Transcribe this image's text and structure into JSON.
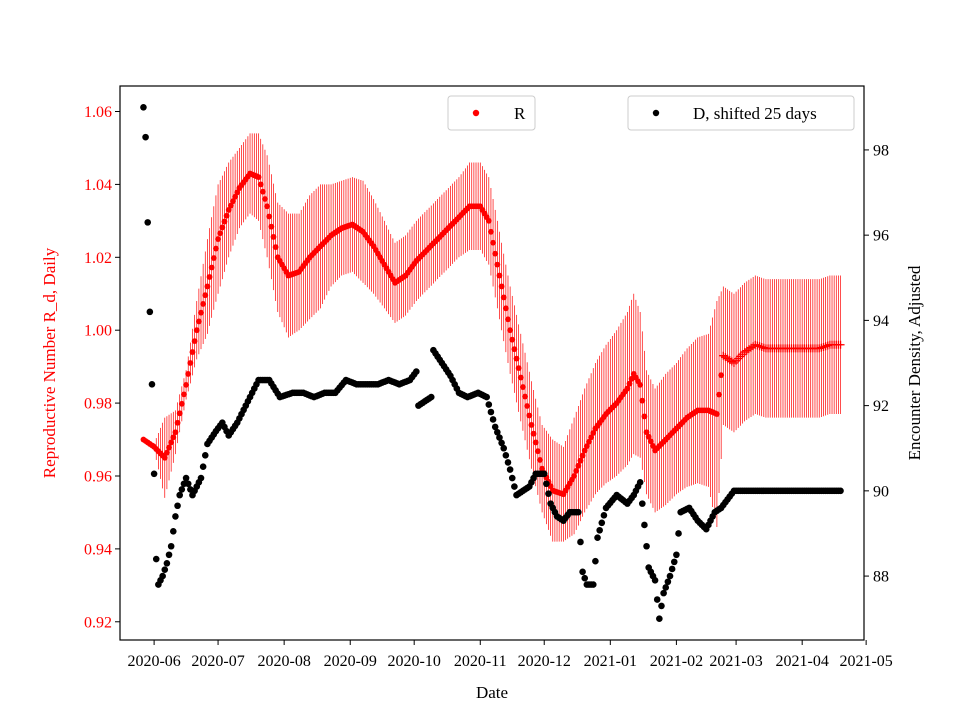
{
  "chart_data": {
    "type": "scatter",
    "xlabel": "Date",
    "ylabel_left": "Reproductive Number R_d, Daily",
    "ylabel_right": "Encounter Density, Adjusted",
    "colors": {
      "r": "#ff0000",
      "d": "#000000",
      "left_axis": "#ff0000",
      "frame": "#000000"
    },
    "x_range": [
      "2020-05-16",
      "2021-04-30"
    ],
    "x_ticks": [
      {
        "date": "2020-06-01",
        "label": "2020-06"
      },
      {
        "date": "2020-07-01",
        "label": "2020-07"
      },
      {
        "date": "2020-08-01",
        "label": "2020-08"
      },
      {
        "date": "2020-09-01",
        "label": "2020-09"
      },
      {
        "date": "2020-10-01",
        "label": "2020-10"
      },
      {
        "date": "2020-11-01",
        "label": "2020-11"
      },
      {
        "date": "2020-12-01",
        "label": "2020-12"
      },
      {
        "date": "2021-01-01",
        "label": "2021-01"
      },
      {
        "date": "2021-02-01",
        "label": "2021-02"
      },
      {
        "date": "2021-03-01",
        "label": "2021-03"
      },
      {
        "date": "2021-04-01",
        "label": "2021-04"
      },
      {
        "date": "2021-05-01",
        "label": "2021-05"
      }
    ],
    "y_left": {
      "range": [
        0.915,
        1.067
      ],
      "ticks": [
        "0.92",
        "0.94",
        "0.96",
        "0.98",
        "1.00",
        "1.02",
        "1.04",
        "1.06"
      ]
    },
    "y_right": {
      "range": [
        86.5,
        99.5
      ],
      "ticks": [
        "88",
        "90",
        "92",
        "94",
        "96",
        "98"
      ]
    },
    "legend": {
      "r_label": "R",
      "d_label": "D, shifted 25 days",
      "r_position": "top-center",
      "d_position": "top-right"
    },
    "series_r": {
      "name": "R",
      "marker": "o then +",
      "start": "2020-05-27",
      "end": "2021-04-19",
      "plus_from": "2021-02-23",
      "knots": [
        [
          "2020-05-27",
          0.97,
          0.97
        ],
        [
          "2020-06-01",
          0.968,
          0.967
        ],
        [
          "2020-06-06",
          0.965,
          0.954
        ],
        [
          "2020-06-11",
          0.972,
          0.966
        ],
        [
          "2020-06-16",
          0.985,
          0.981
        ],
        [
          "2020-06-21",
          1.0,
          0.992
        ],
        [
          "2020-06-26",
          1.012,
          0.999
        ],
        [
          "2020-07-01",
          1.025,
          1.01
        ],
        [
          "2020-07-06",
          1.033,
          1.02
        ],
        [
          "2020-07-11",
          1.039,
          1.028
        ],
        [
          "2020-07-16",
          1.043,
          1.032
        ],
        [
          "2020-07-20",
          1.042,
          1.03
        ],
        [
          "2020-07-24",
          1.034,
          1.02
        ],
        [
          "2020-07-29",
          1.02,
          1.005
        ],
        [
          "2020-08-03",
          1.015,
          0.998
        ],
        [
          "2020-08-08",
          1.016,
          1.0
        ],
        [
          "2020-08-13",
          1.02,
          1.003
        ],
        [
          "2020-08-18",
          1.023,
          1.006
        ],
        [
          "2020-08-23",
          1.026,
          1.012
        ],
        [
          "2020-08-28",
          1.028,
          1.015
        ],
        [
          "2020-09-02",
          1.029,
          1.016
        ],
        [
          "2020-09-07",
          1.027,
          1.013
        ],
        [
          "2020-09-12",
          1.023,
          1.01
        ],
        [
          "2020-09-17",
          1.018,
          1.006
        ],
        [
          "2020-09-22",
          1.013,
          1.002
        ],
        [
          "2020-09-27",
          1.015,
          1.004
        ],
        [
          "2020-10-02",
          1.019,
          1.008
        ],
        [
          "2020-10-07",
          1.022,
          1.011
        ],
        [
          "2020-10-12",
          1.025,
          1.014
        ],
        [
          "2020-10-17",
          1.028,
          1.017
        ],
        [
          "2020-10-22",
          1.031,
          1.02
        ],
        [
          "2020-10-27",
          1.034,
          1.022
        ],
        [
          "2020-11-01",
          1.034,
          1.022
        ],
        [
          "2020-11-05",
          1.03,
          1.018
        ],
        [
          "2020-11-10",
          1.015,
          1.003
        ],
        [
          "2020-11-15",
          1.0,
          0.988
        ],
        [
          "2020-11-20",
          0.987,
          0.975
        ],
        [
          "2020-11-25",
          0.974,
          0.962
        ],
        [
          "2020-11-30",
          0.962,
          0.95
        ],
        [
          "2020-12-05",
          0.956,
          0.942
        ],
        [
          "2020-12-10",
          0.955,
          0.942
        ],
        [
          "2020-12-15",
          0.96,
          0.944
        ],
        [
          "2020-12-20",
          0.967,
          0.95
        ],
        [
          "2020-12-25",
          0.973,
          0.955
        ],
        [
          "2020-12-30",
          0.977,
          0.958
        ],
        [
          "2021-01-04",
          0.98,
          0.96
        ],
        [
          "2021-01-09",
          0.984,
          0.963
        ],
        [
          "2021-01-12",
          0.988,
          0.966
        ],
        [
          "2021-01-15",
          0.985,
          0.965
        ],
        [
          "2021-01-18",
          0.972,
          0.955
        ],
        [
          "2021-01-22",
          0.967,
          0.95
        ],
        [
          "2021-01-27",
          0.97,
          0.952
        ],
        [
          "2021-02-01",
          0.973,
          0.955
        ],
        [
          "2021-02-06",
          0.976,
          0.957
        ],
        [
          "2021-02-11",
          0.978,
          0.958
        ],
        [
          "2021-02-16",
          0.978,
          0.957
        ],
        [
          "2021-02-20",
          0.977,
          0.946
        ],
        [
          "2021-02-23",
          0.993,
          0.974
        ],
        [
          "2021-02-28",
          0.991,
          0.972
        ],
        [
          "2021-03-05",
          0.994,
          0.975
        ],
        [
          "2021-03-10",
          0.996,
          0.977
        ],
        [
          "2021-03-15",
          0.995,
          0.976
        ],
        [
          "2021-03-20",
          0.995,
          0.976
        ],
        [
          "2021-03-25",
          0.995,
          0.976
        ],
        [
          "2021-03-30",
          0.995,
          0.976
        ],
        [
          "2021-04-04",
          0.995,
          0.976
        ],
        [
          "2021-04-09",
          0.995,
          0.976
        ],
        [
          "2021-04-14",
          0.996,
          0.977
        ],
        [
          "2021-04-19",
          0.996,
          0.977
        ]
      ]
    },
    "series_d": {
      "name": "D, shifted 25 days",
      "marker": "o",
      "start": "2020-05-27",
      "end": "2021-04-19",
      "knots": [
        [
          "2020-05-27",
          99.0
        ],
        [
          "2020-05-28",
          98.3
        ],
        [
          "2020-05-29",
          96.3
        ],
        [
          "2020-05-30",
          94.2
        ],
        [
          "2020-05-31",
          92.5
        ],
        [
          "2020-06-01",
          90.4
        ],
        [
          "2020-06-02",
          88.4
        ],
        [
          "2020-06-03",
          87.8
        ],
        [
          "2020-06-05",
          88.0
        ],
        [
          "2020-06-07",
          88.3
        ],
        [
          "2020-06-09",
          88.7
        ],
        [
          "2020-06-11",
          89.4
        ],
        [
          "2020-06-13",
          89.9
        ],
        [
          "2020-06-16",
          90.3
        ],
        [
          "2020-06-19",
          89.9
        ],
        [
          "2020-06-23",
          90.3
        ],
        [
          "2020-06-26",
          91.1
        ],
        [
          "2020-06-30",
          91.4
        ],
        [
          "2020-07-03",
          91.6
        ],
        [
          "2020-07-06",
          91.3
        ],
        [
          "2020-07-10",
          91.6
        ],
        [
          "2020-07-15",
          92.1
        ],
        [
          "2020-07-20",
          92.6
        ],
        [
          "2020-07-25",
          92.6
        ],
        [
          "2020-07-30",
          92.2
        ],
        [
          "2020-08-05",
          92.3
        ],
        [
          "2020-08-10",
          92.3
        ],
        [
          "2020-08-15",
          92.2
        ],
        [
          "2020-08-20",
          92.3
        ],
        [
          "2020-08-25",
          92.3
        ],
        [
          "2020-08-30",
          92.6
        ],
        [
          "2020-09-04",
          92.5
        ],
        [
          "2020-09-09",
          92.5
        ],
        [
          "2020-09-14",
          92.5
        ],
        [
          "2020-09-19",
          92.6
        ],
        [
          "2020-09-24",
          92.5
        ],
        [
          "2020-09-29",
          92.6
        ],
        [
          "2020-10-02",
          92.8
        ],
        [
          "2020-10-03",
          92.0
        ],
        [
          "2020-10-06",
          92.1
        ],
        [
          "2020-10-09",
          92.2
        ],
        [
          "2020-10-10",
          93.3
        ],
        [
          "2020-10-14",
          93.0
        ],
        [
          "2020-10-18",
          92.7
        ],
        [
          "2020-10-22",
          92.3
        ],
        [
          "2020-10-26",
          92.2
        ],
        [
          "2020-10-31",
          92.3
        ],
        [
          "2020-11-04",
          92.2
        ],
        [
          "2020-11-08",
          91.5
        ],
        [
          "2020-11-12",
          91.0
        ],
        [
          "2020-11-15",
          90.5
        ],
        [
          "2020-11-18",
          89.9
        ],
        [
          "2020-11-21",
          90.0
        ],
        [
          "2020-11-24",
          90.1
        ],
        [
          "2020-11-27",
          90.4
        ],
        [
          "2020-12-01",
          90.4
        ],
        [
          "2020-12-04",
          89.7
        ],
        [
          "2020-12-07",
          89.4
        ],
        [
          "2020-12-10",
          89.3
        ],
        [
          "2020-12-13",
          89.5
        ],
        [
          "2020-12-17",
          89.5
        ],
        [
          "2020-12-19",
          88.1
        ],
        [
          "2020-12-21",
          87.8
        ],
        [
          "2020-12-24",
          87.8
        ],
        [
          "2020-12-26",
          88.9
        ],
        [
          "2020-12-30",
          89.6
        ],
        [
          "2021-01-04",
          89.9
        ],
        [
          "2021-01-09",
          89.7
        ],
        [
          "2021-01-12",
          89.9
        ],
        [
          "2021-01-15",
          90.2
        ],
        [
          "2021-01-17",
          89.2
        ],
        [
          "2021-01-19",
          88.2
        ],
        [
          "2021-01-22",
          87.9
        ],
        [
          "2021-01-24",
          87.0
        ],
        [
          "2021-01-26",
          87.6
        ],
        [
          "2021-01-29",
          88.0
        ],
        [
          "2021-02-01",
          88.5
        ],
        [
          "2021-02-03",
          89.5
        ],
        [
          "2021-02-07",
          89.6
        ],
        [
          "2021-02-11",
          89.3
        ],
        [
          "2021-02-15",
          89.1
        ],
        [
          "2021-02-19",
          89.5
        ],
        [
          "2021-02-22",
          89.6
        ],
        [
          "2021-02-28",
          90.0
        ],
        [
          "2021-04-19",
          90.0
        ]
      ]
    }
  }
}
